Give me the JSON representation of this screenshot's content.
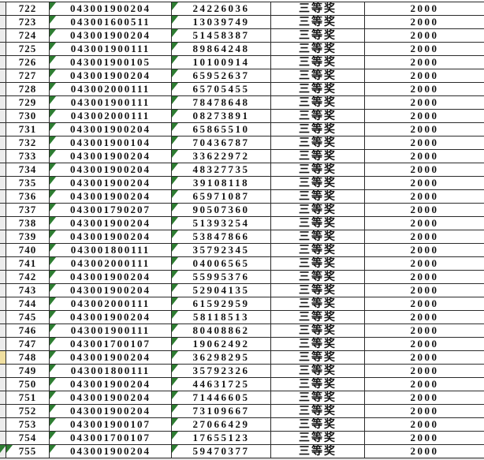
{
  "table": {
    "columns": [
      "row_number",
      "code",
      "serial",
      "prize",
      "amount"
    ],
    "rows": [
      {
        "no": "722",
        "code": "043001900204",
        "serial": "24226036",
        "prize": "三等奖",
        "amount": "2000"
      },
      {
        "no": "723",
        "code": "043001600511",
        "serial": "13039749",
        "prize": "三等奖",
        "amount": "2000"
      },
      {
        "no": "724",
        "code": "043001900204",
        "serial": "51458387",
        "prize": "三等奖",
        "amount": "2000"
      },
      {
        "no": "725",
        "code": "043001900111",
        "serial": "89864248",
        "prize": "三等奖",
        "amount": "2000"
      },
      {
        "no": "726",
        "code": "043001900105",
        "serial": "10100914",
        "prize": "三等奖",
        "amount": "2000"
      },
      {
        "no": "727",
        "code": "043001900204",
        "serial": "65952637",
        "prize": "三等奖",
        "amount": "2000"
      },
      {
        "no": "728",
        "code": "043002000111",
        "serial": "65705455",
        "prize": "三等奖",
        "amount": "2000"
      },
      {
        "no": "729",
        "code": "043001900111",
        "serial": "78478648",
        "prize": "三等奖",
        "amount": "2000"
      },
      {
        "no": "730",
        "code": "043002000111",
        "serial": "08273891",
        "prize": "三等奖",
        "amount": "2000"
      },
      {
        "no": "731",
        "code": "043001900204",
        "serial": "65865510",
        "prize": "三等奖",
        "amount": "2000"
      },
      {
        "no": "732",
        "code": "043001900104",
        "serial": "70436787",
        "prize": "三等奖",
        "amount": "2000"
      },
      {
        "no": "733",
        "code": "043001900204",
        "serial": "33622972",
        "prize": "三等奖",
        "amount": "2000"
      },
      {
        "no": "734",
        "code": "043001900204",
        "serial": "48327735",
        "prize": "三等奖",
        "amount": "2000"
      },
      {
        "no": "735",
        "code": "043001900204",
        "serial": "39108118",
        "prize": "三等奖",
        "amount": "2000"
      },
      {
        "no": "736",
        "code": "043001900204",
        "serial": "65971087",
        "prize": "三等奖",
        "amount": "2000"
      },
      {
        "no": "737",
        "code": "043001790207",
        "serial": "90507360",
        "prize": "三等奖",
        "amount": "2000"
      },
      {
        "no": "738",
        "code": "043001900204",
        "serial": "51393254",
        "prize": "三等奖",
        "amount": "2000"
      },
      {
        "no": "739",
        "code": "043001900204",
        "serial": "53847866",
        "prize": "三等奖",
        "amount": "2000"
      },
      {
        "no": "740",
        "code": "043001800111",
        "serial": "35792345",
        "prize": "三等奖",
        "amount": "2000"
      },
      {
        "no": "741",
        "code": "043002000111",
        "serial": "04006565",
        "prize": "三等奖",
        "amount": "2000"
      },
      {
        "no": "742",
        "code": "043001900204",
        "serial": "55995376",
        "prize": "三等奖",
        "amount": "2000"
      },
      {
        "no": "743",
        "code": "043001900204",
        "serial": "52904135",
        "prize": "三等奖",
        "amount": "2000"
      },
      {
        "no": "744",
        "code": "043002000111",
        "serial": "61592959",
        "prize": "三等奖",
        "amount": "2000"
      },
      {
        "no": "745",
        "code": "043001900204",
        "serial": "58118513",
        "prize": "三等奖",
        "amount": "2000"
      },
      {
        "no": "746",
        "code": "043001900111",
        "serial": "80408862",
        "prize": "三等奖",
        "amount": "2000"
      },
      {
        "no": "747",
        "code": "043001700107",
        "serial": "19062492",
        "prize": "三等奖",
        "amount": "2000"
      },
      {
        "no": "748",
        "code": "043001900204",
        "serial": "36298295",
        "prize": "三等奖",
        "amount": "2000"
      },
      {
        "no": "749",
        "code": "043001800111",
        "serial": "35792326",
        "prize": "三等奖",
        "amount": "2000"
      },
      {
        "no": "750",
        "code": "043001900204",
        "serial": "44631725",
        "prize": "三等奖",
        "amount": "2000"
      },
      {
        "no": "751",
        "code": "043001900204",
        "serial": "71446605",
        "prize": "三等奖",
        "amount": "2000"
      },
      {
        "no": "752",
        "code": "043001900204",
        "serial": "73109667",
        "prize": "三等奖",
        "amount": "2000"
      },
      {
        "no": "753",
        "code": "043001900107",
        "serial": "27066429",
        "prize": "三等奖",
        "amount": "2000"
      },
      {
        "no": "754",
        "code": "043001700107",
        "serial": "17655123",
        "prize": "三等奖",
        "amount": "2000"
      },
      {
        "no": "755",
        "code": "043001900204",
        "serial": "59470377",
        "prize": "三等奖",
        "amount": "2000"
      }
    ]
  },
  "markers": {
    "code_triangle_rows": "all",
    "serial_triangle_rows": "all",
    "rownum_triangle_rows": [
      "755"
    ],
    "gutter_green_triangle_rows": [
      "755"
    ],
    "gutter_yellow_rows": [
      "748"
    ]
  },
  "colors": {
    "grid_line": "#2b2b2b",
    "text": "#141414",
    "error_triangle_green": "#2e7d32",
    "gutter_background": "#ececec",
    "gutter_yellow_highlight": "#f0dfa0",
    "cell_background": "#ffffff"
  }
}
